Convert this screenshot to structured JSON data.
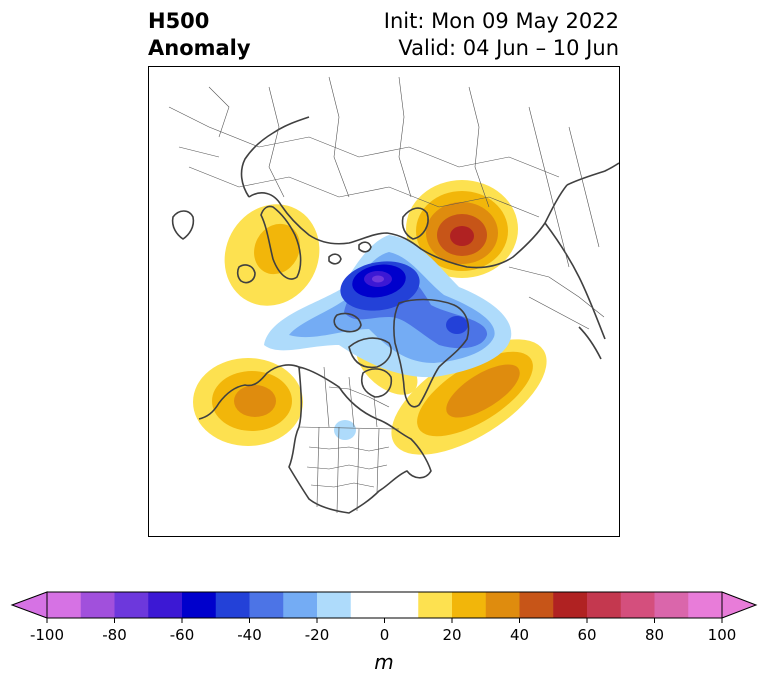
{
  "title": {
    "left_line1": "H500",
    "left_line2": "Anomaly",
    "right_line1": "Init: Mon 09 May 2022",
    "right_line2": "Valid: 04 Jun – 10 Jun"
  },
  "map": {
    "projection": "north-polar-stereographic",
    "features": [
      "coastlines",
      "country-borders",
      "us-state-borders"
    ],
    "anomaly_centers": [
      {
        "region": "Northern Siberia / Kara Sea",
        "sign": "positive",
        "peak_m": 60
      },
      {
        "region": "Arctic Ocean north of Greenland",
        "sign": "negative",
        "peak_m": -60
      },
      {
        "region": "Greenland east coast",
        "sign": "negative",
        "peak_m": -40
      },
      {
        "region": "Gulf of Alaska / NE Pacific",
        "sign": "positive",
        "peak_m": 30
      },
      {
        "region": "NW Atlantic / Eastern Canada",
        "sign": "positive",
        "peak_m": 30
      },
      {
        "region": "Scandinavia / Barents",
        "sign": "positive",
        "peak_m": 20
      }
    ]
  },
  "colorbar": {
    "unit": "m",
    "range": [
      -100,
      100
    ],
    "extend": "both",
    "tick_labels": [
      "-100",
      "-80",
      "-60",
      "-40",
      "-20",
      "0",
      "20",
      "40",
      "60",
      "80",
      "100"
    ],
    "colors": [
      "#d672e4",
      "#a150dc",
      "#6d38dc",
      "#3c18d4",
      "#0000cc",
      "#2341d8",
      "#4c74e6",
      "#74acf4",
      "#aedbfb",
      "#ffffff",
      "#ffffff",
      "#fde150",
      "#f2b60a",
      "#df8c0e",
      "#c75518",
      "#b02222",
      "#c4384f",
      "#d44f7d",
      "#da66ab",
      "#e87cd9"
    ]
  }
}
